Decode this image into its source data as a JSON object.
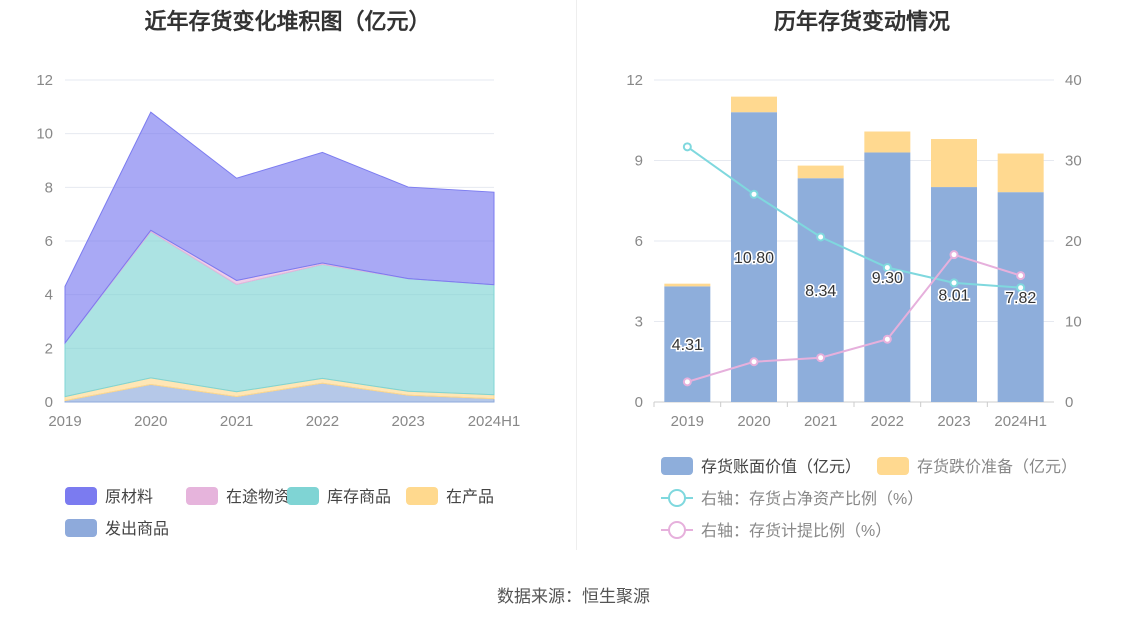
{
  "chart_data": [
    {
      "type": "area",
      "stacked": true,
      "title": "近年存货变化堆积图（亿元）",
      "categories": [
        "2019",
        "2020",
        "2021",
        "2022",
        "2023",
        "2024H1"
      ],
      "ylim": [
        0,
        12
      ],
      "yticks": [
        "0",
        "2",
        "4",
        "6",
        "8",
        "10",
        "12"
      ],
      "grid": true,
      "legend_position": "bottom",
      "series": [
        {
          "name": "发出商品",
          "color": "#8eaadb",
          "values": [
            0.05,
            0.65,
            0.2,
            0.7,
            0.25,
            0.12
          ]
        },
        {
          "name": "在产品",
          "color": "#ffd98e",
          "values": [
            0.15,
            0.25,
            0.18,
            0.18,
            0.15,
            0.15
          ]
        },
        {
          "name": "库存商品",
          "color": "#7fd4d4",
          "values": [
            2.0,
            5.45,
            4.0,
            4.25,
            4.2,
            4.1
          ]
        },
        {
          "name": "在途物资",
          "color": "#e6b4dc",
          "values": [
            0.0,
            0.05,
            0.15,
            0.05,
            0.0,
            0.0
          ]
        },
        {
          "name": "原材料",
          "color": "#7b7bf0",
          "values": [
            2.11,
            4.4,
            3.81,
            4.12,
            3.41,
            3.45
          ]
        }
      ],
      "legend_order": [
        "原材料",
        "在途物资",
        "库存商品",
        "在产品",
        "发出商品"
      ]
    },
    {
      "type": "bar",
      "stacked": true,
      "title": "历年存货变动情况",
      "categories": [
        "2019",
        "2020",
        "2021",
        "2022",
        "2023",
        "2024H1"
      ],
      "ylim": [
        0,
        12
      ],
      "yticks": [
        "0",
        "3",
        "6",
        "9",
        "12"
      ],
      "y2lim": [
        0,
        40
      ],
      "y2ticks": [
        "0",
        "10",
        "20",
        "30",
        "40"
      ],
      "grid": true,
      "legend_position": "bottom",
      "series": [
        {
          "name": "存货账面价值（亿元）",
          "color": "#8eaedb",
          "values": [
            4.31,
            10.8,
            8.34,
            9.3,
            8.01,
            7.82
          ],
          "labels": [
            "4.31",
            "10.80",
            "8.34",
            "9.30",
            "8.01",
            "7.82"
          ]
        },
        {
          "name": "存货跌价准备（亿元）",
          "color": "#ffd990",
          "values": [
            0.1,
            0.58,
            0.47,
            0.78,
            1.79,
            1.44
          ]
        }
      ],
      "line_series": [
        {
          "name": "右轴：存货占净资产比例（%）",
          "color": "#7fd8de",
          "axis": "right",
          "values": [
            31.7,
            25.8,
            20.5,
            16.7,
            14.8,
            14.2
          ]
        },
        {
          "name": "右轴：存货计提比例（%）",
          "color": "#e6b0dc",
          "axis": "right",
          "values": [
            2.5,
            5.0,
            5.5,
            7.8,
            18.3,
            15.7
          ]
        }
      ]
    }
  ],
  "footer": {
    "source": "数据来源：恒生聚源"
  }
}
